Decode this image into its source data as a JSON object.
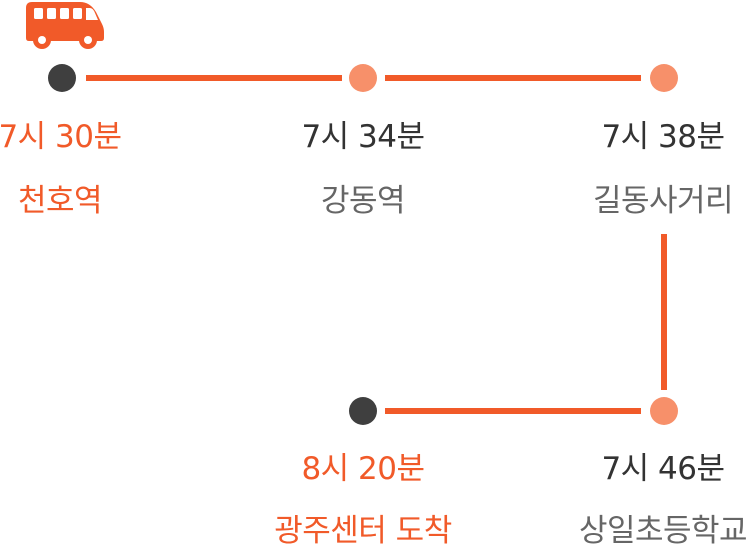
{
  "colors": {
    "accent": "#f15a29",
    "stop_dark": "#3f3f3f",
    "stop_light": "#f7906a",
    "time_text": "#333333",
    "station_text": "#666666"
  },
  "icons": {
    "vehicle": "bus-icon"
  },
  "stops": [
    {
      "time": "7시 30분",
      "name": "천호역"
    },
    {
      "time": "7시 34분",
      "name": "강동역"
    },
    {
      "time": "7시 38분",
      "name": "길동사거리"
    },
    {
      "time": "7시 46분",
      "name": "상일초등학교"
    },
    {
      "time": "8시 20분",
      "name": "광주센터 도착"
    }
  ]
}
